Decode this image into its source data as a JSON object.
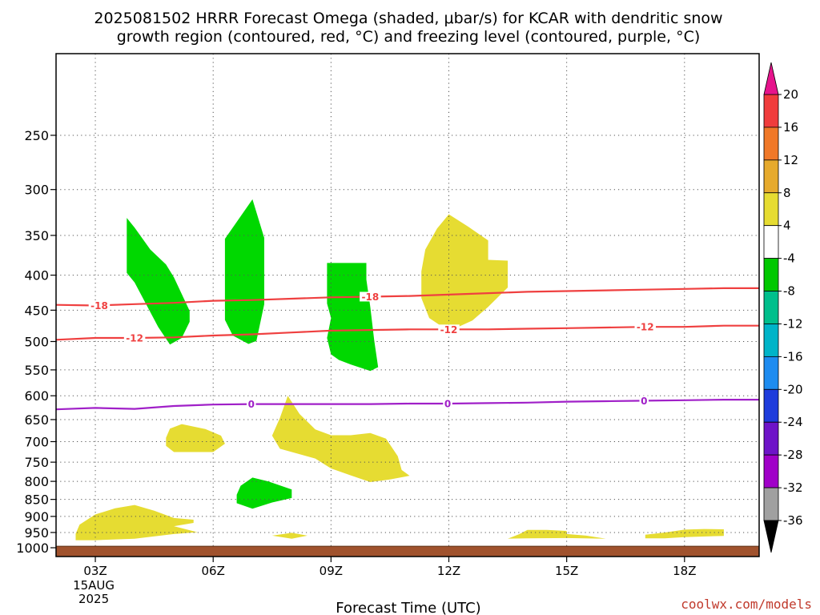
{
  "title": {
    "line1": "2025081502 HRRR Forecast Omega (shaded, μbar/s) for KCAR with dendritic snow",
    "line2": "growth region (contoured, red, °C) and freezing level (contoured, purple, °C)"
  },
  "credit": "coolwx.com/models",
  "chart_data": {
    "type": "contour",
    "title": "2025081502 HRRR Forecast Omega (shaded, μbar/s) for KCAR with dendritic snow growth region (contoured, red, °C) and freezing level (contoured, purple, °C)",
    "xlabel": "Forecast Time (UTC)",
    "ylabel": "",
    "x_units": "hour UTC",
    "xlim": [
      2,
      19.9
    ],
    "y_units": "hPa",
    "y_scale": "log",
    "ylim": [
      1030,
      190
    ],
    "grid": true,
    "x_ticks": [
      {
        "value": 3,
        "label": "03Z",
        "sub": [
          "15AUG",
          "2025"
        ]
      },
      {
        "value": 6,
        "label": "06Z"
      },
      {
        "value": 9,
        "label": "09Z"
      },
      {
        "value": 12,
        "label": "12Z"
      },
      {
        "value": 15,
        "label": "15Z"
      },
      {
        "value": 18,
        "label": "18Z"
      }
    ],
    "y_ticks": [
      250,
      300,
      350,
      400,
      450,
      500,
      550,
      600,
      650,
      700,
      750,
      800,
      850,
      900,
      950,
      1000
    ],
    "surface_pressure_hPa": 995,
    "surface_color": "#a0522d",
    "colorbar": {
      "ticks": [
        "20",
        "16",
        "12",
        "8",
        "4",
        "-4",
        "-8",
        "-12",
        "-16",
        "-20",
        "-24",
        "-28",
        "-32",
        "-36"
      ],
      "bins": [
        {
          "range": "16 to 20",
          "color": "#f03c3c"
        },
        {
          "range": "12 to 16",
          "color": "#f07828"
        },
        {
          "range": "8 to 12",
          "color": "#e6aa2d"
        },
        {
          "range": "4 to 8",
          "color": "#e6dc32"
        },
        {
          "range": "-4 to 4",
          "color": "#ffffff"
        },
        {
          "range": "-8 to -4",
          "color": "#00c800"
        },
        {
          "range": "-12 to -8",
          "color": "#00bf8c"
        },
        {
          "range": "-16 to -12",
          "color": "#00b4c8"
        },
        {
          "range": "-20 to -16",
          "color": "#1e8cf0"
        },
        {
          "range": "-24 to -20",
          "color": "#1e3cdc"
        },
        {
          "range": "-28 to -24",
          "color": "#6e14c8"
        },
        {
          "range": "-32 to -28",
          "color": "#a000c8"
        },
        {
          "range": "-36 to -32",
          "color": "#a0a0a0"
        }
      ],
      "top_arrow_color": "#e6148c",
      "bottom_arrow_color": "#000000"
    },
    "contours": [
      {
        "name": "-18",
        "color": "#ef4040",
        "points": [
          [
            2.0,
            442
          ],
          [
            3.0,
            443
          ],
          [
            4.0,
            441
          ],
          [
            5.0,
            439
          ],
          [
            6.0,
            436
          ],
          [
            7.0,
            435
          ],
          [
            8.0,
            433
          ],
          [
            9.0,
            431
          ],
          [
            10.0,
            430
          ],
          [
            11.0,
            429
          ],
          [
            12.0,
            427
          ],
          [
            13.0,
            425
          ],
          [
            14.0,
            423
          ],
          [
            15.0,
            422
          ],
          [
            16.0,
            421
          ],
          [
            17.0,
            420
          ],
          [
            18.0,
            419
          ],
          [
            19.0,
            418
          ],
          [
            19.9,
            418
          ]
        ],
        "labels": [
          {
            "x": 3.1,
            "text": "-18"
          },
          {
            "x": 10.0,
            "text": "-18"
          }
        ]
      },
      {
        "name": "-12",
        "color": "#ef4040",
        "points": [
          [
            2.0,
            497
          ],
          [
            3.0,
            494
          ],
          [
            4.0,
            494
          ],
          [
            5.0,
            493
          ],
          [
            6.0,
            490
          ],
          [
            7.0,
            488
          ],
          [
            8.0,
            485
          ],
          [
            9.0,
            482
          ],
          [
            10.0,
            481
          ],
          [
            11.0,
            480
          ],
          [
            12.0,
            480
          ],
          [
            13.0,
            480
          ],
          [
            14.0,
            479
          ],
          [
            15.0,
            478
          ],
          [
            16.0,
            477
          ],
          [
            17.0,
            476
          ],
          [
            18.0,
            476
          ],
          [
            19.0,
            474
          ],
          [
            19.9,
            474
          ]
        ],
        "labels": [
          {
            "x": 4.0,
            "text": "-12"
          },
          {
            "x": 12.0,
            "text": "-12"
          },
          {
            "x": 17.0,
            "text": "-12"
          }
        ]
      },
      {
        "name": "0",
        "color": "#a020c8",
        "points": [
          [
            2.0,
            628
          ],
          [
            3.0,
            625
          ],
          [
            4.0,
            627
          ],
          [
            5.0,
            621
          ],
          [
            6.0,
            618
          ],
          [
            7.0,
            617
          ],
          [
            8.0,
            617
          ],
          [
            9.0,
            617
          ],
          [
            10.0,
            617
          ],
          [
            11.0,
            616
          ],
          [
            12.0,
            616
          ],
          [
            13.0,
            615
          ],
          [
            14.0,
            614
          ],
          [
            15.0,
            612
          ],
          [
            16.0,
            611
          ],
          [
            17.0,
            610
          ],
          [
            18.0,
            609
          ],
          [
            19.0,
            608
          ],
          [
            19.9,
            608
          ]
        ],
        "labels": [
          {
            "x": 6.97,
            "text": "0"
          },
          {
            "x": 11.97,
            "text": "0"
          },
          {
            "x": 16.97,
            "text": "0"
          }
        ]
      }
    ],
    "omega_regions": [
      {
        "range": "-8 to -4",
        "color": "#00d800",
        "points": [
          [
            3.8,
            330
          ],
          [
            4.0,
            341
          ],
          [
            4.4,
            367
          ],
          [
            4.8,
            386
          ],
          [
            5.0,
            403
          ],
          [
            5.4,
            451
          ],
          [
            5.4,
            468
          ],
          [
            5.2,
            494
          ],
          [
            4.9,
            505
          ],
          [
            4.6,
            476
          ],
          [
            4.0,
            410
          ],
          [
            3.8,
            397
          ]
        ]
      },
      {
        "range": "-8 to -4",
        "color": "#00d800",
        "points": [
          [
            7.0,
            310
          ],
          [
            7.3,
            353
          ],
          [
            7.3,
            441
          ],
          [
            7.1,
            499
          ],
          [
            6.9,
            504
          ],
          [
            6.5,
            490
          ],
          [
            6.3,
            465
          ],
          [
            6.3,
            354
          ]
        ]
      },
      {
        "range": "-8 to -4",
        "color": "#00d800",
        "points": [
          [
            8.9,
            384
          ],
          [
            9.9,
            384
          ],
          [
            9.9,
            406
          ],
          [
            10.0,
            445
          ],
          [
            10.1,
            498
          ],
          [
            10.2,
            545
          ],
          [
            10.0,
            552
          ],
          [
            9.5,
            540
          ],
          [
            9.2,
            532
          ],
          [
            9.0,
            522
          ],
          [
            8.9,
            494
          ],
          [
            9.0,
            462
          ],
          [
            8.9,
            440
          ]
        ]
      },
      {
        "range": "-8 to -4",
        "color": "#00d800",
        "points": [
          [
            7.0,
            790
          ],
          [
            7.4,
            800
          ],
          [
            8.0,
            822
          ],
          [
            8.0,
            846
          ],
          [
            7.5,
            859
          ],
          [
            7.0,
            877
          ],
          [
            6.6,
            861
          ],
          [
            6.6,
            837
          ],
          [
            6.7,
            812
          ]
        ]
      },
      {
        "range": "4 to 8",
        "color": "#e6dc32",
        "points": [
          [
            12.0,
            326
          ],
          [
            12.5,
            340
          ],
          [
            13.0,
            356
          ],
          [
            13.0,
            380
          ],
          [
            13.5,
            381
          ],
          [
            13.5,
            417
          ],
          [
            13.0,
            445
          ],
          [
            12.6,
            466
          ],
          [
            12.0,
            483
          ],
          [
            11.5,
            462
          ],
          [
            11.3,
            432
          ],
          [
            11.3,
            395
          ],
          [
            11.4,
            367
          ],
          [
            11.7,
            342
          ]
        ]
      },
      {
        "range": "4 to 8",
        "color": "#e6dc32",
        "points": [
          [
            5.2,
            660
          ],
          [
            5.8,
            671
          ],
          [
            6.2,
            686
          ],
          [
            6.3,
            705
          ],
          [
            6.0,
            725
          ],
          [
            5.4,
            725
          ],
          [
            5.0,
            725
          ],
          [
            4.8,
            710
          ],
          [
            4.8,
            691
          ],
          [
            4.9,
            670
          ]
        ]
      },
      {
        "range": "4 to 8",
        "color": "#e6dc32",
        "points": [
          [
            7.9,
            600
          ],
          [
            8.2,
            638
          ],
          [
            8.6,
            672
          ],
          [
            9.0,
            685
          ],
          [
            9.5,
            685
          ],
          [
            10.0,
            680
          ],
          [
            10.4,
            693
          ],
          [
            10.7,
            735
          ],
          [
            10.8,
            770
          ],
          [
            11.0,
            785
          ],
          [
            10.5,
            795
          ],
          [
            10.0,
            802
          ],
          [
            9.5,
            784
          ],
          [
            9.0,
            766
          ],
          [
            8.6,
            741
          ],
          [
            7.7,
            717
          ],
          [
            7.5,
            686
          ],
          [
            7.7,
            646
          ]
        ]
      },
      {
        "range": "4 to 8",
        "color": "#e6dc32",
        "points": [
          [
            4.0,
            866
          ],
          [
            4.5,
            883
          ],
          [
            5.0,
            905
          ],
          [
            5.5,
            910
          ],
          [
            5.5,
            920
          ],
          [
            5.0,
            930
          ],
          [
            5.6,
            949
          ],
          [
            5.0,
            955
          ],
          [
            4.0,
            970
          ],
          [
            3.0,
            975
          ],
          [
            2.5,
            975
          ],
          [
            2.5,
            954
          ],
          [
            2.6,
            925
          ],
          [
            3.0,
            894
          ],
          [
            3.5,
            876
          ]
        ]
      },
      {
        "range": "4 to 8",
        "color": "#e6dc32",
        "points": [
          [
            7.5,
            960
          ],
          [
            8.0,
            951
          ],
          [
            8.4,
            960
          ],
          [
            8.0,
            970
          ]
        ]
      },
      {
        "range": "4 to 8",
        "color": "#e6dc32",
        "points": [
          [
            14.0,
            942
          ],
          [
            14.5,
            942
          ],
          [
            15.0,
            945
          ],
          [
            15.0,
            955
          ],
          [
            15.5,
            960
          ],
          [
            16.0,
            970
          ],
          [
            15.0,
            968
          ],
          [
            14.0,
            969
          ],
          [
            13.5,
            970
          ],
          [
            13.8,
            955
          ]
        ]
      },
      {
        "range": "4 to 8",
        "color": "#e6dc32",
        "points": [
          [
            18.0,
            941
          ],
          [
            18.5,
            939
          ],
          [
            19.0,
            940
          ],
          [
            19.0,
            961
          ],
          [
            18.0,
            965
          ],
          [
            17.5,
            969
          ],
          [
            17.0,
            969
          ],
          [
            17.0,
            957
          ],
          [
            17.5,
            950
          ]
        ]
      }
    ]
  }
}
